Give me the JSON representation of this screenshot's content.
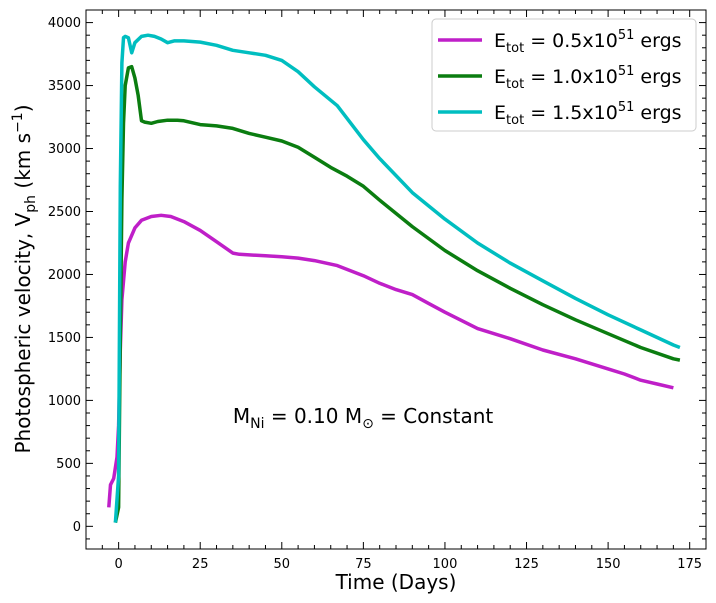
{
  "chart_data": {
    "type": "line",
    "xlabel": "Time (Days)",
    "ylabel_main": "Photospheric velocity, V",
    "ylabel_sub": "ph",
    "ylabel_units_pre": " (km s",
    "ylabel_units_sup": "−1",
    "ylabel_units_post": ")",
    "xlim": [
      -10,
      180
    ],
    "ylim": [
      -180,
      4100
    ],
    "xticks": [
      0,
      25,
      50,
      75,
      100,
      125,
      150,
      175
    ],
    "xtick_labels": [
      "0",
      "25",
      "50",
      "75",
      "100",
      "125",
      "150",
      "175"
    ],
    "yticks": [
      0,
      500,
      1000,
      1500,
      2000,
      2500,
      3000,
      3500,
      4000
    ],
    "ytick_labels": [
      "0",
      "500",
      "1000",
      "1500",
      "2000",
      "2500",
      "3000",
      "3500",
      "4000"
    ],
    "annotation": {
      "pre": "M",
      "sub1": "Ni",
      "mid": " = 0.10 M",
      "sub2": "⊙",
      "post": " = Constant",
      "x": 35,
      "y": 820
    },
    "legend_location": "top-right",
    "series": [
      {
        "name": "E_tot = 0.5x10^51 ergs",
        "label_pre": "E",
        "label_sub": "tot",
        "label_mid": " = 0.5x10",
        "label_sup": "51",
        "label_post": " ergs",
        "color": "#bf1fc8",
        "x": [
          -3,
          -2.5,
          -1.5,
          -0.5,
          0,
          0.5,
          1,
          2,
          3,
          5,
          7,
          10,
          13,
          16,
          20,
          25,
          30,
          35,
          37,
          40,
          45,
          50,
          55,
          60,
          67,
          75,
          80,
          85,
          90,
          95,
          100,
          110,
          120,
          130,
          140,
          150,
          155,
          160,
          165,
          170
        ],
        "values": [
          150,
          330,
          380,
          550,
          800,
          1400,
          1800,
          2100,
          2250,
          2370,
          2430,
          2460,
          2470,
          2460,
          2420,
          2350,
          2260,
          2170,
          2160,
          2155,
          2148,
          2140,
          2130,
          2110,
          2070,
          1990,
          1930,
          1880,
          1840,
          1770,
          1700,
          1570,
          1490,
          1400,
          1330,
          1250,
          1210,
          1160,
          1130,
          1100
        ]
      },
      {
        "name": "E_tot = 1.0x10^51 ergs",
        "label_pre": "E",
        "label_sub": "tot",
        "label_mid": " = 1.0x10",
        "label_sup": "51",
        "label_post": " ergs",
        "color": "#0b7d10",
        "x": [
          -1,
          0,
          0.5,
          1,
          1.5,
          2,
          3,
          4,
          5,
          6,
          7,
          8,
          10,
          12,
          15,
          18,
          20,
          25,
          30,
          35,
          40,
          45,
          50,
          55,
          60,
          65,
          70,
          75,
          80,
          90,
          100,
          110,
          120,
          130,
          140,
          150,
          160,
          170,
          172
        ],
        "values": [
          30,
          150,
          1500,
          2600,
          3200,
          3500,
          3640,
          3650,
          3560,
          3420,
          3220,
          3210,
          3200,
          3215,
          3225,
          3225,
          3220,
          3190,
          3180,
          3160,
          3120,
          3090,
          3060,
          3010,
          2930,
          2850,
          2780,
          2700,
          2590,
          2380,
          2190,
          2030,
          1890,
          1760,
          1640,
          1530,
          1420,
          1330,
          1320
        ]
      },
      {
        "name": "E_tot = 1.5x10^51 ergs",
        "label_pre": "E",
        "label_sub": "tot",
        "label_mid": " = 1.5x10",
        "label_sup": "51",
        "label_post": " ergs",
        "color": "#00bec0",
        "x": [
          -1,
          0,
          0.5,
          1,
          1.5,
          2,
          3,
          4,
          5,
          7,
          9,
          11,
          13,
          15,
          17,
          20,
          25,
          30,
          35,
          40,
          45,
          50,
          55,
          60,
          67,
          75,
          80,
          90,
          100,
          110,
          120,
          130,
          140,
          150,
          160,
          170,
          172
        ],
        "values": [
          30,
          400,
          2700,
          3680,
          3880,
          3890,
          3880,
          3760,
          3840,
          3890,
          3900,
          3890,
          3870,
          3840,
          3855,
          3855,
          3845,
          3820,
          3780,
          3760,
          3740,
          3700,
          3610,
          3490,
          3340,
          3070,
          2920,
          2650,
          2440,
          2250,
          2090,
          1950,
          1810,
          1680,
          1560,
          1440,
          1420
        ]
      }
    ]
  }
}
